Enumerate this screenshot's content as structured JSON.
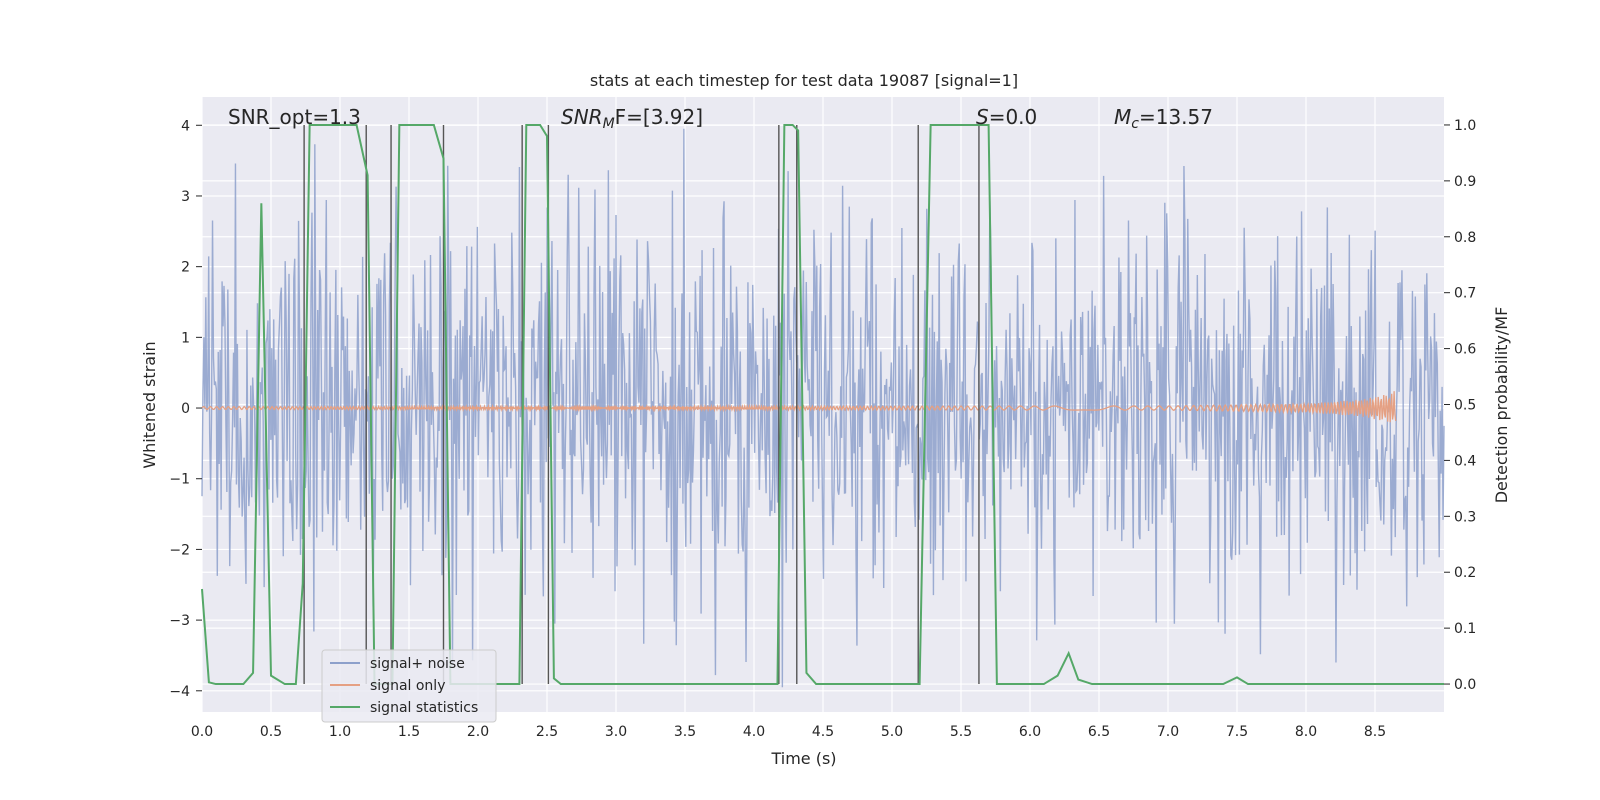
{
  "chart_data": {
    "type": "line",
    "title": "stats at each timestep for test data 19087 [signal=1]",
    "xlabel": "Time (s)",
    "ylabel_left": "Whitened strain",
    "ylabel_right": "Detection probability/MF",
    "xlim": [
      0.0,
      9.0
    ],
    "ylim_left": [
      -4.3,
      4.4
    ],
    "ylim_right": [
      -0.05,
      1.05
    ],
    "x_ticks": [
      "0.0",
      "0.5",
      "1.0",
      "1.5",
      "2.0",
      "2.5",
      "3.0",
      "3.5",
      "4.0",
      "4.5",
      "5.0",
      "5.5",
      "6.0",
      "6.5",
      "7.0",
      "7.5",
      "8.0",
      "8.5"
    ],
    "y_ticks_left": [
      "4",
      "3",
      "2",
      "1",
      "0",
      "−1",
      "−2",
      "−3",
      "−4"
    ],
    "y_ticks_right": [
      "1.0",
      "0.9",
      "0.8",
      "0.7",
      "0.6",
      "0.5",
      "0.4",
      "0.3",
      "0.2",
      "0.1",
      "0.0"
    ],
    "grid": true,
    "legend_position": "lower-left",
    "annotations": {
      "snr_opt": "SNR_opt=1.3",
      "snr_mf_main": "SNR",
      "snr_mf_sub": "M",
      "snr_mf_rest": "F=[3.92]",
      "s_italic": "S",
      "s_rest": "=0.0",
      "mc_main": "M",
      "mc_sub": "c",
      "mc_rest": "=13.57"
    },
    "series": [
      {
        "name": "signal+ noise",
        "color": "#8da0cb",
        "description_values": "whitened noise spanning approx -3.9 to 3.9"
      },
      {
        "name": "signal only",
        "color": "#e5a083",
        "values_x": [
          0.0,
          7.0,
          8.0,
          8.4,
          8.6,
          8.65
        ],
        "values_amp": [
          0.02,
          0.03,
          0.06,
          0.12,
          0.2,
          0.25
        ]
      },
      {
        "name": "signal statistics",
        "color": "#55a868",
        "x": [
          0.0,
          0.05,
          0.1,
          0.3,
          0.37,
          0.43,
          0.5,
          0.6,
          0.68,
          0.73,
          0.78,
          1.12,
          1.2,
          1.25,
          1.38,
          1.43,
          1.5,
          1.68,
          1.75,
          1.8,
          2.3,
          2.35,
          2.45,
          2.5,
          2.55,
          2.6,
          4.1,
          4.17,
          4.22,
          4.28,
          4.32,
          4.38,
          4.45,
          5.13,
          5.2,
          5.28,
          5.62,
          5.7,
          5.76,
          6.1,
          6.2,
          6.28,
          6.35,
          6.45,
          7.4,
          7.5,
          7.58,
          9.0
        ],
        "y": [
          0.17,
          0.003,
          0.0,
          0.0,
          0.02,
          0.86,
          0.015,
          0.0,
          0.0,
          0.18,
          1.0,
          1.0,
          0.91,
          0.0,
          0.0,
          1.0,
          1.0,
          1.0,
          0.94,
          0.0,
          0.0,
          1.0,
          1.0,
          0.98,
          0.01,
          0.0,
          0.0,
          0.0,
          1.0,
          1.0,
          0.99,
          0.02,
          0.0,
          0.0,
          0.0,
          1.0,
          1.0,
          1.0,
          0.0,
          0.0,
          0.015,
          0.055,
          0.008,
          0.0,
          0.0,
          0.012,
          0.0,
          0.0
        ]
      }
    ],
    "vertical_markers": [
      0.74,
      1.19,
      1.37,
      1.75,
      2.32,
      2.51,
      4.18,
      4.31,
      5.19,
      5.63
    ]
  }
}
